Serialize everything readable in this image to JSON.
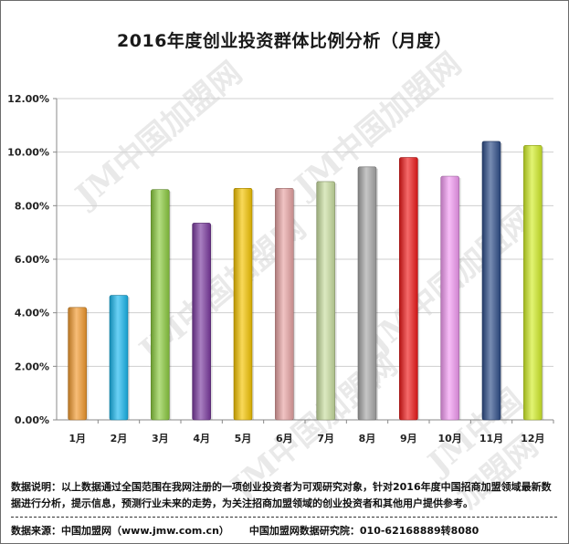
{
  "title": "2016年度创业投资群体比例分析（月度）",
  "watermark_text": "JM中国加盟网",
  "footer": {
    "note": "数据说明：以上数据通过全国范围在我网注册的一项创业投资者为可观研究对象，针对2016年度中国招商加盟领域最新数据进行分析，提示信息，预测行业未来的走势，为关注招商加盟领域的创业投资者和其他用户提供参考。",
    "source": "数据来源：中国加盟网（www.jmw.com.cn）",
    "institute": "中国加盟网数据研究院：010-62168889转8080"
  },
  "chart_data": {
    "type": "bar",
    "title": "2016年度创业投资群体比例分析（月度）",
    "xlabel": "",
    "ylabel": "",
    "categories": [
      "1月",
      "2月",
      "3月",
      "4月",
      "5月",
      "6月",
      "7月",
      "8月",
      "9月",
      "10月",
      "11月",
      "12月"
    ],
    "values": [
      4.2,
      4.65,
      8.6,
      7.35,
      8.65,
      8.65,
      8.9,
      9.45,
      9.8,
      9.1,
      10.4,
      10.25
    ],
    "value_format": "percent",
    "ylim": [
      0,
      12
    ],
    "yticks": [
      "0.00%",
      "2.00%",
      "4.00%",
      "6.00%",
      "8.00%",
      "10.00%",
      "12.00%"
    ],
    "grid": true,
    "legend": "none",
    "colors": [
      "#f39a2e",
      "#19b8ef",
      "#8ccc3f",
      "#7b3aa0",
      "#f5c400",
      "#e8a3a3",
      "#c9dea0",
      "#a8a8a8",
      "#ef1a1a",
      "#f29af2",
      "#2e4e8a",
      "#d2ee28"
    ]
  }
}
